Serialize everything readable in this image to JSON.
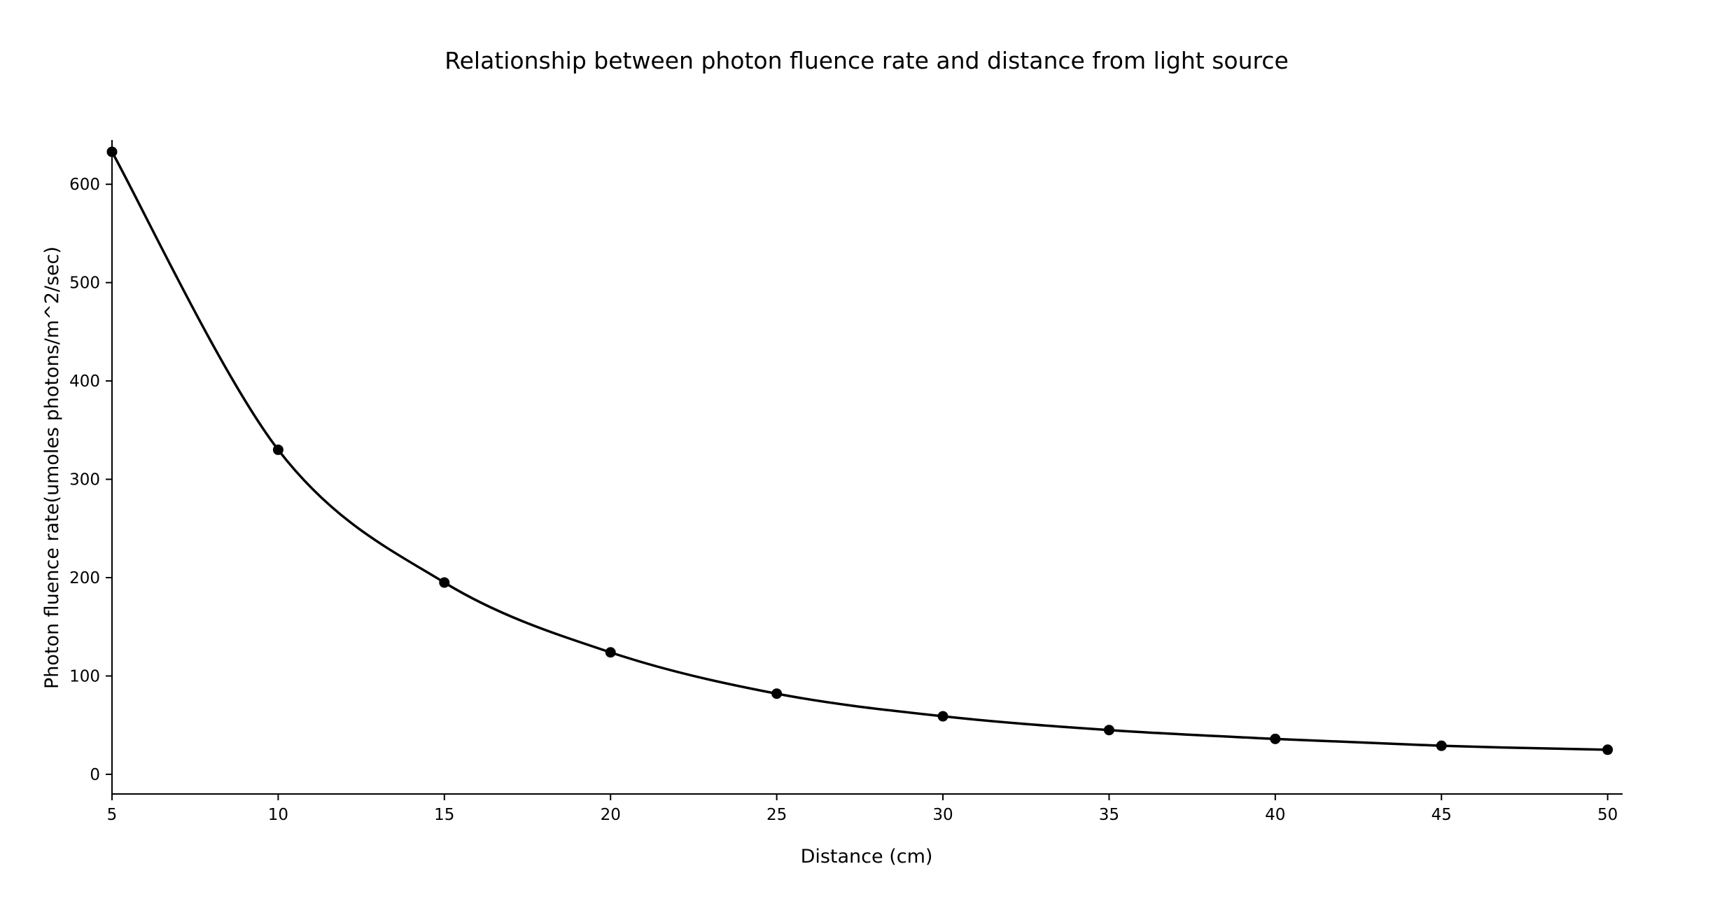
{
  "chart_data": {
    "type": "line",
    "title": "Relationship between photon fluence rate and distance from light source",
    "xlabel": "Distance (cm)",
    "ylabel": "Photon fluence rate(umoles photons/m^2/sec)",
    "x": [
      5,
      10,
      15,
      20,
      25,
      30,
      35,
      40,
      45,
      50
    ],
    "series": [
      {
        "values": [
          633,
          330,
          195,
          124,
          82,
          59,
          45,
          36,
          29,
          25
        ],
        "color": "#000000",
        "markers": true,
        "smooth": true
      }
    ],
    "xticks": [
      5,
      10,
      15,
      20,
      25,
      30,
      35,
      40,
      45,
      50
    ],
    "yticks": [
      0,
      100,
      200,
      300,
      400,
      500,
      600
    ],
    "xlim": [
      5,
      50.45
    ],
    "ylim": [
      -20,
      645
    ],
    "grid": false,
    "legend": "none"
  }
}
